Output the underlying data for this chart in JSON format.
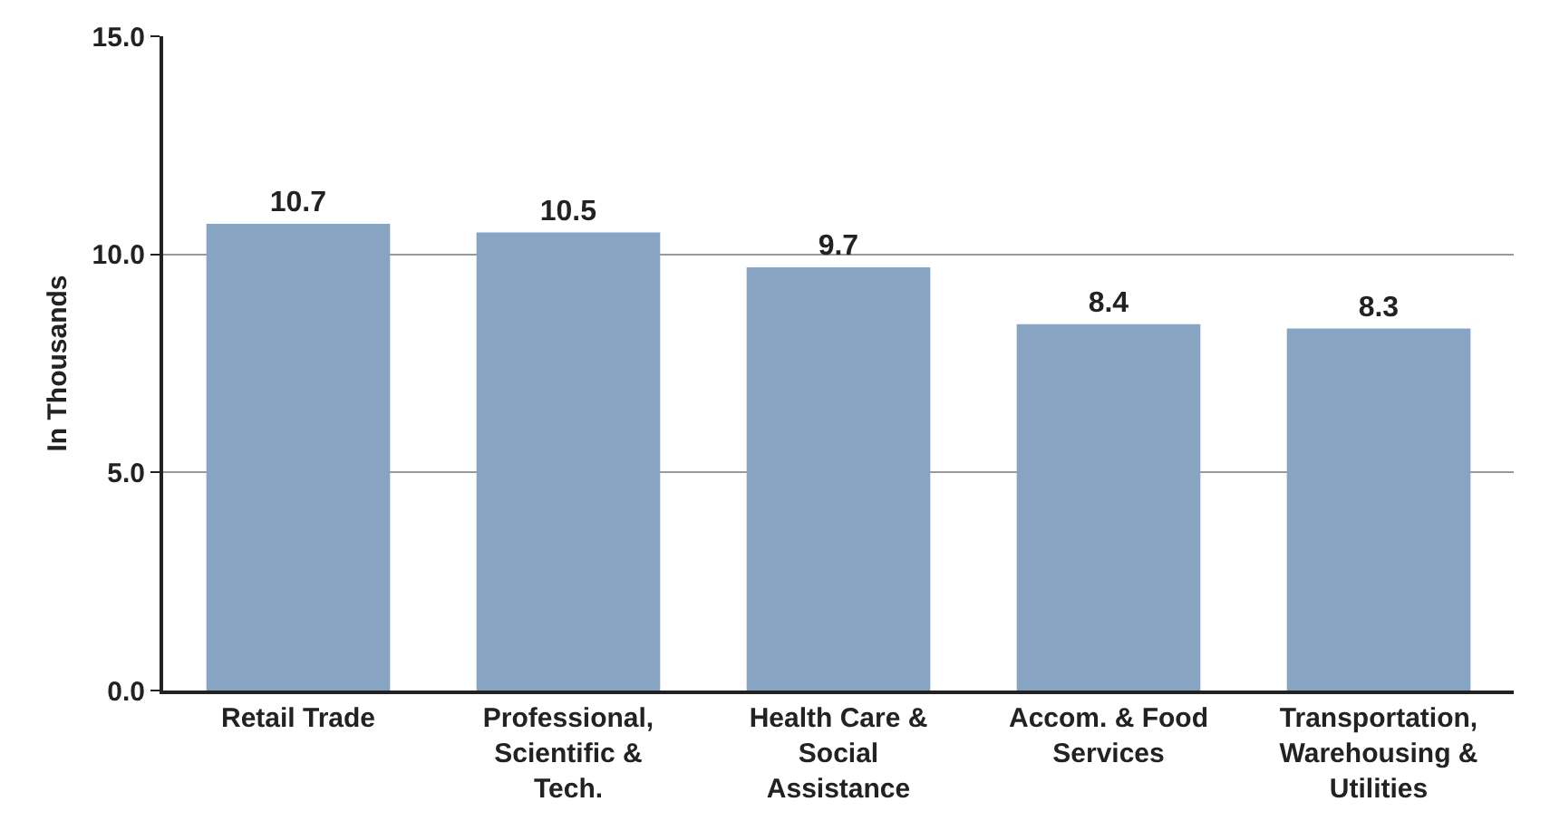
{
  "chart_data": {
    "type": "bar",
    "ylabel": "In Thousands",
    "categories": [
      "Retail Trade",
      "Professional, Scientific & Tech.",
      "Health Care & Social Assistance",
      "Accom. & Food Services",
      "Transportation, Warehousing & Utilities"
    ],
    "values": [
      10.7,
      10.5,
      9.7,
      8.4,
      8.3
    ],
    "color": "#87a5c3",
    "ylim": [
      0,
      15
    ],
    "yticks": [
      {
        "value": 0,
        "label": "0.0"
      },
      {
        "value": 5,
        "label": "5.0"
      },
      {
        "value": 10,
        "label": "10.0"
      },
      {
        "value": 15,
        "label": "15.0"
      }
    ],
    "grid": "y",
    "data_labels": true
  }
}
